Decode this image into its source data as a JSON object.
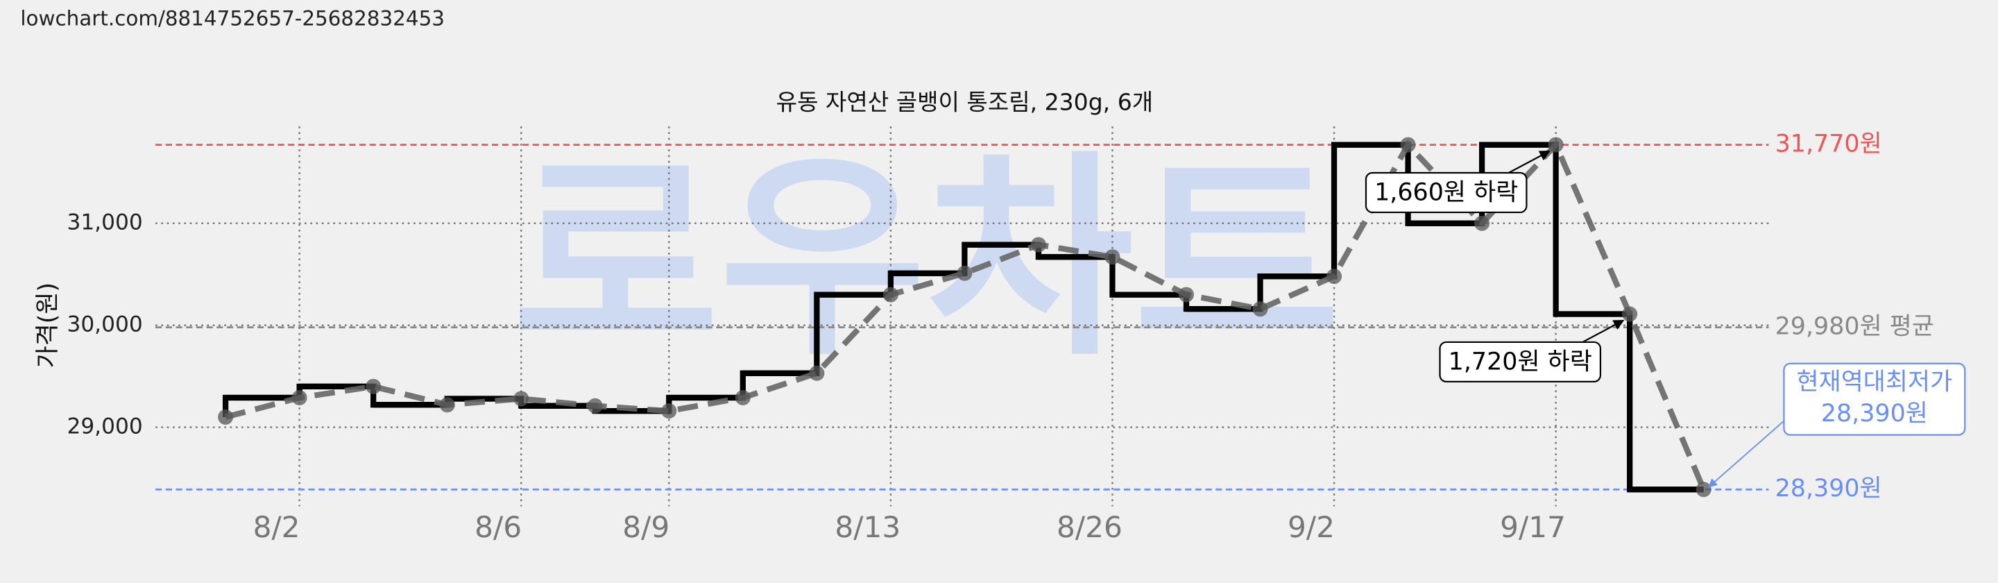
{
  "url": "lowchart.com/8814752657-25682832453",
  "watermark": "로우차트",
  "chart_data": {
    "type": "step",
    "title": "유동 자연산 골뱅이 통조림, 230g, 6개",
    "y_label": "가격(원)",
    "categories": [
      null,
      "8/2",
      null,
      null,
      "8/6",
      null,
      "8/9",
      null,
      null,
      "8/13",
      null,
      null,
      "8/26",
      null,
      null,
      "9/2",
      null,
      null,
      "9/17",
      null,
      null
    ],
    "series": [
      {
        "name": "가격",
        "color": "#666666",
        "values": [
          29100,
          29290,
          29400,
          29220,
          29280,
          29210,
          29160,
          29290,
          29530,
          30300,
          30510,
          30790,
          30670,
          30300,
          30160,
          30480,
          31770,
          31000,
          31770,
          30110,
          28390
        ]
      }
    ],
    "ylim": [
      28200,
      31950
    ],
    "yticks": [
      {
        "value": 29000,
        "label": "29,000"
      },
      {
        "value": 30000,
        "label": "30,000"
      },
      {
        "value": 31000,
        "label": "31,000"
      }
    ],
    "grid": true,
    "reference_lines": [
      {
        "value": 31770,
        "label": "31,770원",
        "color": "#f05454"
      },
      {
        "value": 29980,
        "label": "29,980원 평균",
        "color": "#888888"
      },
      {
        "value": 28390,
        "label": "28,390원",
        "color": "#6b8ff0"
      }
    ],
    "annotations": [
      {
        "text": "1,660원 하락",
        "index": 18
      },
      {
        "text": "1,720원 하락",
        "index": 19
      },
      {
        "lines": [
          "현재역대최저가",
          "28,390원"
        ],
        "index": 20,
        "color": "#6b8ff0"
      }
    ]
  }
}
